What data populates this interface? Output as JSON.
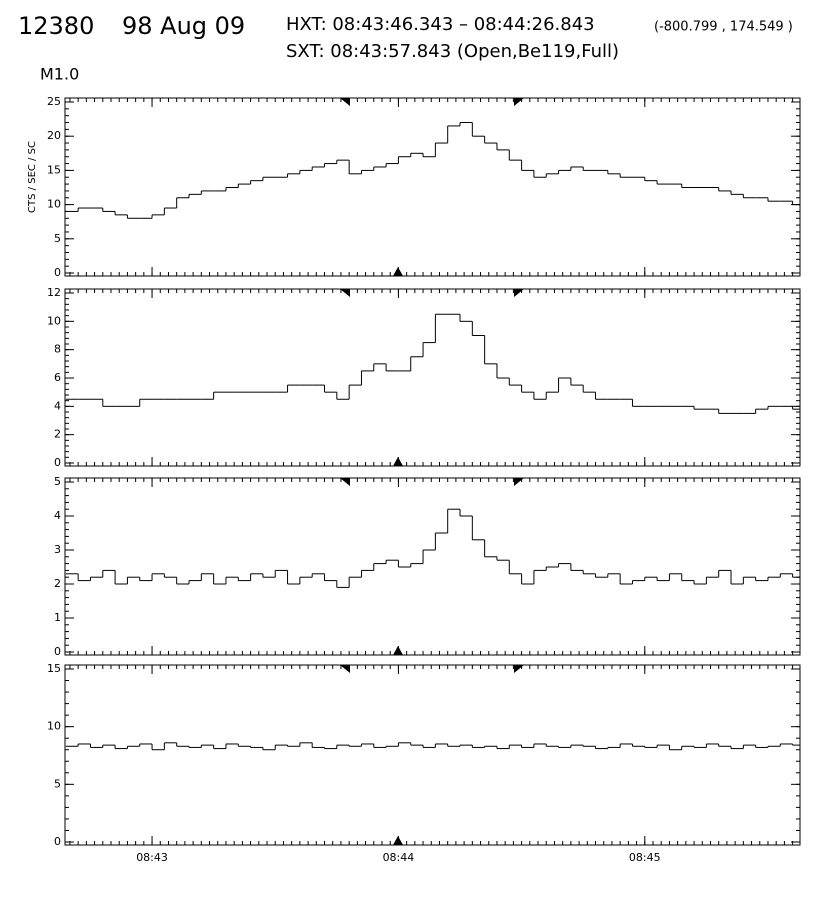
{
  "header": {
    "id": "12380",
    "date": "98 Aug 09",
    "hxt": "HXT: 08:43:46.343 – 08:44:26.843",
    "coords": "(-800.799 , 174.549 )",
    "sxt": "SXT: 08:43:57.843 (Open,Be119,Full)",
    "class": "M1.0"
  },
  "chart_data": [
    {
      "type": "line",
      "ylabel": "CTS / SEC / SC",
      "color": "#000000",
      "xlim": [
        31358.8,
        31537.8
      ],
      "ylim": [
        0,
        25
      ],
      "yticks": [
        0,
        5,
        10,
        15,
        20,
        25
      ],
      "x": [
        31359,
        31362,
        31365,
        31368,
        31371,
        31374,
        31377,
        31380,
        31383,
        31386,
        31389,
        31392,
        31395,
        31398,
        31401,
        31404,
        31407,
        31410,
        31413,
        31416,
        31419,
        31422,
        31425,
        31428,
        31431,
        31434,
        31437,
        31440,
        31443,
        31446,
        31449,
        31452,
        31455,
        31458,
        31461,
        31464,
        31467,
        31470,
        31473,
        31476,
        31479,
        31482,
        31485,
        31488,
        31491,
        31494,
        31497,
        31500,
        31503,
        31506,
        31509,
        31512,
        31515,
        31518,
        31521,
        31524,
        31527,
        31530,
        31533,
        31536
      ],
      "values": [
        9,
        9.5,
        9.5,
        9,
        8.5,
        8,
        8,
        8.5,
        9.5,
        11,
        11.5,
        12,
        12,
        12.5,
        13,
        13.5,
        14,
        14,
        14.5,
        15,
        15.5,
        16,
        16.5,
        14.5,
        15,
        15.5,
        16,
        17,
        17.5,
        17,
        19,
        21.5,
        22,
        20,
        19,
        18,
        16.5,
        15,
        14,
        14.5,
        15,
        15.5,
        15,
        15,
        14.5,
        14,
        14,
        13.5,
        13,
        13,
        12.5,
        12.5,
        12.5,
        12,
        11.5,
        11,
        11,
        10.5,
        10.5,
        10
      ]
    },
    {
      "type": "line",
      "color": "#000000",
      "xlim": [
        31358.8,
        31537.8
      ],
      "ylim": [
        0,
        12
      ],
      "yticks": [
        0,
        2,
        4,
        6,
        8,
        10,
        12
      ],
      "x": [
        31359,
        31362,
        31365,
        31368,
        31371,
        31374,
        31377,
        31380,
        31383,
        31386,
        31389,
        31392,
        31395,
        31398,
        31401,
        31404,
        31407,
        31410,
        31413,
        31416,
        31419,
        31422,
        31425,
        31428,
        31431,
        31434,
        31437,
        31440,
        31443,
        31446,
        31449,
        31452,
        31455,
        31458,
        31461,
        31464,
        31467,
        31470,
        31473,
        31476,
        31479,
        31482,
        31485,
        31488,
        31491,
        31494,
        31497,
        31500,
        31503,
        31506,
        31509,
        31512,
        31515,
        31518,
        31521,
        31524,
        31527,
        31530,
        31533,
        31536
      ],
      "values": [
        4.5,
        4.5,
        4.5,
        4,
        4,
        4,
        4.5,
        4.5,
        4.5,
        4.5,
        4.5,
        4.5,
        5,
        5,
        5,
        5,
        5,
        5,
        5.5,
        5.5,
        5.5,
        5,
        4.5,
        5.5,
        6.5,
        7,
        6.5,
        6.5,
        7.5,
        8.5,
        10.5,
        10.5,
        10,
        9,
        7,
        6,
        5.5,
        5,
        4.5,
        5,
        6,
        5.5,
        5,
        4.5,
        4.5,
        4.5,
        4,
        4,
        4,
        4,
        4,
        3.8,
        3.8,
        3.5,
        3.5,
        3.5,
        3.8,
        4,
        4,
        3.8
      ]
    },
    {
      "type": "line",
      "color": "#000000",
      "xlim": [
        31358.8,
        31537.8
      ],
      "ylim": [
        0,
        5
      ],
      "yticks": [
        0,
        1,
        2,
        3,
        4,
        5
      ],
      "x": [
        31359,
        31362,
        31365,
        31368,
        31371,
        31374,
        31377,
        31380,
        31383,
        31386,
        31389,
        31392,
        31395,
        31398,
        31401,
        31404,
        31407,
        31410,
        31413,
        31416,
        31419,
        31422,
        31425,
        31428,
        31431,
        31434,
        31437,
        31440,
        31443,
        31446,
        31449,
        31452,
        31455,
        31458,
        31461,
        31464,
        31467,
        31470,
        31473,
        31476,
        31479,
        31482,
        31485,
        31488,
        31491,
        31494,
        31497,
        31500,
        31503,
        31506,
        31509,
        31512,
        31515,
        31518,
        31521,
        31524,
        31527,
        31530,
        31533,
        31536
      ],
      "values": [
        2.3,
        2.1,
        2.2,
        2.4,
        2,
        2.2,
        2.1,
        2.3,
        2.2,
        2,
        2.1,
        2.3,
        2,
        2.2,
        2.1,
        2.3,
        2.2,
        2.4,
        2,
        2.2,
        2.3,
        2.1,
        1.9,
        2.2,
        2.4,
        2.6,
        2.7,
        2.5,
        2.6,
        3,
        3.5,
        4.2,
        4,
        3.3,
        2.8,
        2.7,
        2.3,
        2,
        2.4,
        2.5,
        2.6,
        2.4,
        2.3,
        2.2,
        2.3,
        2,
        2.1,
        2.2,
        2.1,
        2.3,
        2.1,
        2,
        2.2,
        2.4,
        2,
        2.2,
        2.1,
        2.2,
        2.3,
        2.2
      ]
    },
    {
      "type": "line",
      "color": "#000000",
      "xlim": [
        31358.8,
        31537.8
      ],
      "ylim": [
        0,
        15
      ],
      "yticks": [
        0,
        5,
        10,
        15
      ],
      "xticks": [
        {
          "value": 31380,
          "label": "08:43"
        },
        {
          "value": 31440,
          "label": "08:44"
        },
        {
          "value": 31500,
          "label": "08:45"
        }
      ],
      "x": [
        31359,
        31362,
        31365,
        31368,
        31371,
        31374,
        31377,
        31380,
        31383,
        31386,
        31389,
        31392,
        31395,
        31398,
        31401,
        31404,
        31407,
        31410,
        31413,
        31416,
        31419,
        31422,
        31425,
        31428,
        31431,
        31434,
        31437,
        31440,
        31443,
        31446,
        31449,
        31452,
        31455,
        31458,
        31461,
        31464,
        31467,
        31470,
        31473,
        31476,
        31479,
        31482,
        31485,
        31488,
        31491,
        31494,
        31497,
        31500,
        31503,
        31506,
        31509,
        31512,
        31515,
        31518,
        31521,
        31524,
        31527,
        31530,
        31533,
        31536
      ],
      "values": [
        8.3,
        8.5,
        8.2,
        8.4,
        8.1,
        8.3,
        8.5,
        8,
        8.6,
        8.3,
        8.2,
        8.4,
        8.1,
        8.5,
        8.3,
        8.2,
        8,
        8.4,
        8.3,
        8.6,
        8.2,
        8.1,
        8.4,
        8.3,
        8.5,
        8.2,
        8.3,
        8.6,
        8.4,
        8.2,
        8.5,
        8.3,
        8.4,
        8.2,
        8.3,
        8.1,
        8.4,
        8.2,
        8.5,
        8.3,
        8.2,
        8.4,
        8.3,
        8.1,
        8.2,
        8.5,
        8.3,
        8.2,
        8.4,
        8,
        8.3,
        8.2,
        8.5,
        8.3,
        8.1,
        8.4,
        8.2,
        8.3,
        8.5,
        8.4
      ]
    }
  ]
}
